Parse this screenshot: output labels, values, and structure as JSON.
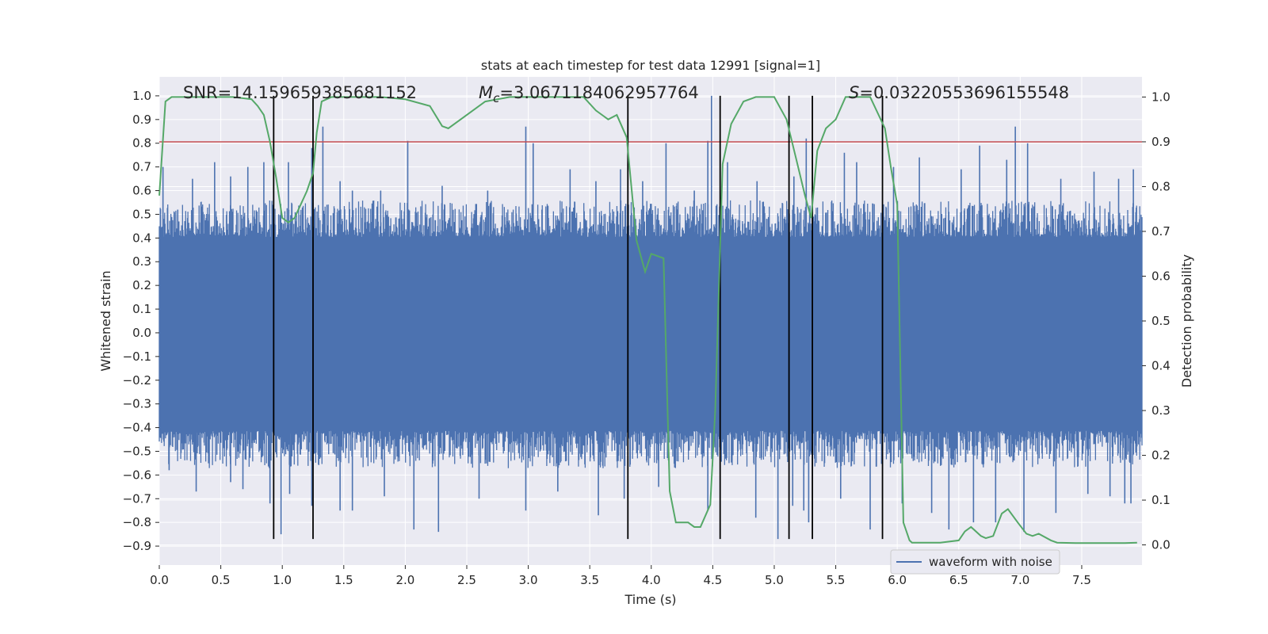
{
  "chart_data": {
    "type": "line",
    "title": "stats at each timestep for test data 12991 [signal=1]",
    "xlabel": "Time (s)",
    "ylabel_left": "Whitened strain",
    "ylabel_right": "Detection probability",
    "xlim": [
      0.0,
      7.99
    ],
    "ylim_left": [
      -0.98,
      1.08
    ],
    "ylim_right": [
      -0.045,
      1.045
    ],
    "x_ticks": [
      "0.0",
      "0.5",
      "1.0",
      "1.5",
      "2.0",
      "2.5",
      "3.0",
      "3.5",
      "4.0",
      "4.5",
      "5.0",
      "5.5",
      "6.0",
      "6.5",
      "7.0",
      "7.5"
    ],
    "y_ticks_left": [
      "−0.9",
      "−0.8",
      "−0.7",
      "−0.6",
      "−0.5",
      "−0.4",
      "−0.3",
      "−0.2",
      "−0.1",
      "0.0",
      "0.1",
      "0.2",
      "0.3",
      "0.4",
      "0.5",
      "0.6",
      "0.7",
      "0.8",
      "0.9",
      "1.0"
    ],
    "y_ticks_right": [
      "0.0",
      "0.1",
      "0.2",
      "0.3",
      "0.4",
      "0.5",
      "0.6",
      "0.7",
      "0.8",
      "0.9",
      "1.0"
    ],
    "grid": true,
    "legend_placement": "lower-center-right",
    "annotations": {
      "snr": "SNR=14.159659385681152",
      "mc_symbol": "M",
      "mc_sub": "c",
      "mc_value": "=3.0671184062957764",
      "s_symbol": "S",
      "s_value": "=0.03220553696155548"
    },
    "threshold": {
      "axis": "right",
      "value": 0.9,
      "color": "#c44e52"
    },
    "vertical_lines": [
      0.93,
      1.25,
      3.81,
      4.56,
      5.12,
      5.31,
      5.88
    ],
    "vertical_lines_range": [
      -0.87,
      1.0
    ],
    "series": [
      {
        "name": "waveform with noise",
        "axis": "left",
        "color": "#4c72b0",
        "duration": 7.99,
        "typical_max": 0.44,
        "typical_min": -0.45,
        "peaks": [
          [
            0.03,
            0.7
          ],
          [
            0.15,
            0.52
          ],
          [
            0.27,
            0.65
          ],
          [
            0.45,
            0.72
          ],
          [
            0.58,
            0.66
          ],
          [
            0.72,
            0.7
          ],
          [
            0.85,
            0.72
          ],
          [
            1.05,
            0.72
          ],
          [
            1.24,
            0.78
          ],
          [
            1.33,
            0.87
          ],
          [
            1.47,
            0.64
          ],
          [
            1.57,
            0.6
          ],
          [
            1.8,
            0.6
          ],
          [
            2.02,
            0.81
          ],
          [
            2.3,
            0.62
          ],
          [
            2.67,
            0.6
          ],
          [
            2.98,
            0.87
          ],
          [
            3.04,
            0.8
          ],
          [
            3.34,
            0.69
          ],
          [
            3.55,
            0.64
          ],
          [
            3.75,
            0.69
          ],
          [
            3.93,
            0.64
          ],
          [
            4.12,
            0.8
          ],
          [
            4.35,
            0.6
          ],
          [
            4.46,
            0.81
          ],
          [
            4.49,
            1.0
          ],
          [
            4.62,
            0.72
          ],
          [
            4.86,
            0.64
          ],
          [
            5.16,
            0.66
          ],
          [
            5.26,
            0.82
          ],
          [
            5.57,
            0.76
          ],
          [
            5.67,
            0.72
          ],
          [
            5.97,
            0.7
          ],
          [
            6.18,
            0.74
          ],
          [
            6.52,
            0.69
          ],
          [
            6.67,
            0.79
          ],
          [
            6.89,
            0.73
          ],
          [
            6.96,
            0.87
          ],
          [
            7.06,
            0.8
          ],
          [
            7.33,
            0.65
          ],
          [
            7.6,
            0.68
          ],
          [
            7.8,
            0.65
          ],
          [
            7.92,
            0.69
          ]
        ],
        "troughs": [
          [
            0.08,
            -0.58
          ],
          [
            0.3,
            -0.67
          ],
          [
            0.58,
            -0.63
          ],
          [
            0.68,
            -0.66
          ],
          [
            0.9,
            -0.72
          ],
          [
            0.99,
            -0.85
          ],
          [
            1.06,
            -0.68
          ],
          [
            1.24,
            -0.73
          ],
          [
            1.47,
            -0.75
          ],
          [
            1.57,
            -0.75
          ],
          [
            1.83,
            -0.69
          ],
          [
            2.07,
            -0.83
          ],
          [
            2.27,
            -0.84
          ],
          [
            2.6,
            -0.7
          ],
          [
            2.98,
            -0.75
          ],
          [
            3.24,
            -0.67
          ],
          [
            3.57,
            -0.77
          ],
          [
            3.78,
            -0.7
          ],
          [
            4.06,
            -0.65
          ],
          [
            4.46,
            -0.75
          ],
          [
            4.85,
            -0.78
          ],
          [
            5.03,
            -0.87
          ],
          [
            5.15,
            -0.73
          ],
          [
            5.24,
            -0.75
          ],
          [
            5.28,
            -0.8
          ],
          [
            5.54,
            -0.7
          ],
          [
            5.78,
            -0.83
          ],
          [
            6.04,
            -0.72
          ],
          [
            6.28,
            -0.76
          ],
          [
            6.42,
            -0.83
          ],
          [
            6.62,
            -0.8
          ],
          [
            6.8,
            -0.8
          ],
          [
            7.03,
            -0.84
          ],
          [
            7.29,
            -0.76
          ],
          [
            7.55,
            -0.68
          ],
          [
            7.73,
            -0.69
          ],
          [
            7.85,
            -0.72
          ],
          [
            7.9,
            -0.72
          ]
        ]
      },
      {
        "name": "",
        "axis": "right",
        "color": "#55a868",
        "x": [
          0.0,
          0.05,
          0.1,
          0.2,
          0.4,
          0.6,
          0.75,
          0.8,
          0.85,
          0.9,
          0.95,
          1.0,
          1.05,
          1.1,
          1.2,
          1.25,
          1.28,
          1.32,
          1.4,
          1.6,
          1.8,
          2.0,
          2.2,
          2.3,
          2.35,
          2.45,
          2.65,
          2.85,
          3.05,
          3.25,
          3.45,
          3.55,
          3.65,
          3.72,
          3.8,
          3.88,
          3.95,
          4.0,
          4.1,
          4.15,
          4.2,
          4.3,
          4.35,
          4.4,
          4.48,
          4.52,
          4.58,
          4.65,
          4.75,
          4.85,
          5.0,
          5.1,
          5.18,
          5.25,
          5.3,
          5.35,
          5.42,
          5.5,
          5.58,
          5.7,
          5.78,
          5.9,
          5.95,
          6.0,
          6.05,
          6.1,
          6.12,
          6.15,
          6.25,
          6.35,
          6.5,
          6.55,
          6.6,
          6.68,
          6.72,
          6.78,
          6.85,
          6.9,
          6.98,
          7.05,
          7.1,
          7.15,
          7.25,
          7.3,
          7.45,
          7.6,
          7.75,
          7.85,
          7.95
        ],
        "y": [
          0.78,
          0.99,
          1.0,
          1.0,
          1.0,
          1.0,
          0.995,
          0.98,
          0.96,
          0.9,
          0.82,
          0.73,
          0.72,
          0.73,
          0.79,
          0.83,
          0.92,
          0.99,
          1.0,
          1.0,
          1.0,
          0.995,
          0.98,
          0.935,
          0.93,
          0.95,
          0.99,
          1.0,
          1.0,
          1.0,
          1.0,
          0.97,
          0.95,
          0.96,
          0.91,
          0.68,
          0.61,
          0.65,
          0.64,
          0.12,
          0.05,
          0.05,
          0.04,
          0.04,
          0.09,
          0.3,
          0.85,
          0.94,
          0.99,
          1.0,
          1.0,
          0.95,
          0.86,
          0.78,
          0.73,
          0.88,
          0.93,
          0.95,
          1.0,
          1.0,
          1.0,
          0.93,
          0.84,
          0.76,
          0.05,
          0.01,
          0.005,
          0.005,
          0.005,
          0.005,
          0.01,
          0.03,
          0.04,
          0.02,
          0.015,
          0.02,
          0.07,
          0.08,
          0.05,
          0.025,
          0.02,
          0.025,
          0.01,
          0.005,
          0.004,
          0.004,
          0.004,
          0.004,
          0.005
        ]
      }
    ]
  }
}
